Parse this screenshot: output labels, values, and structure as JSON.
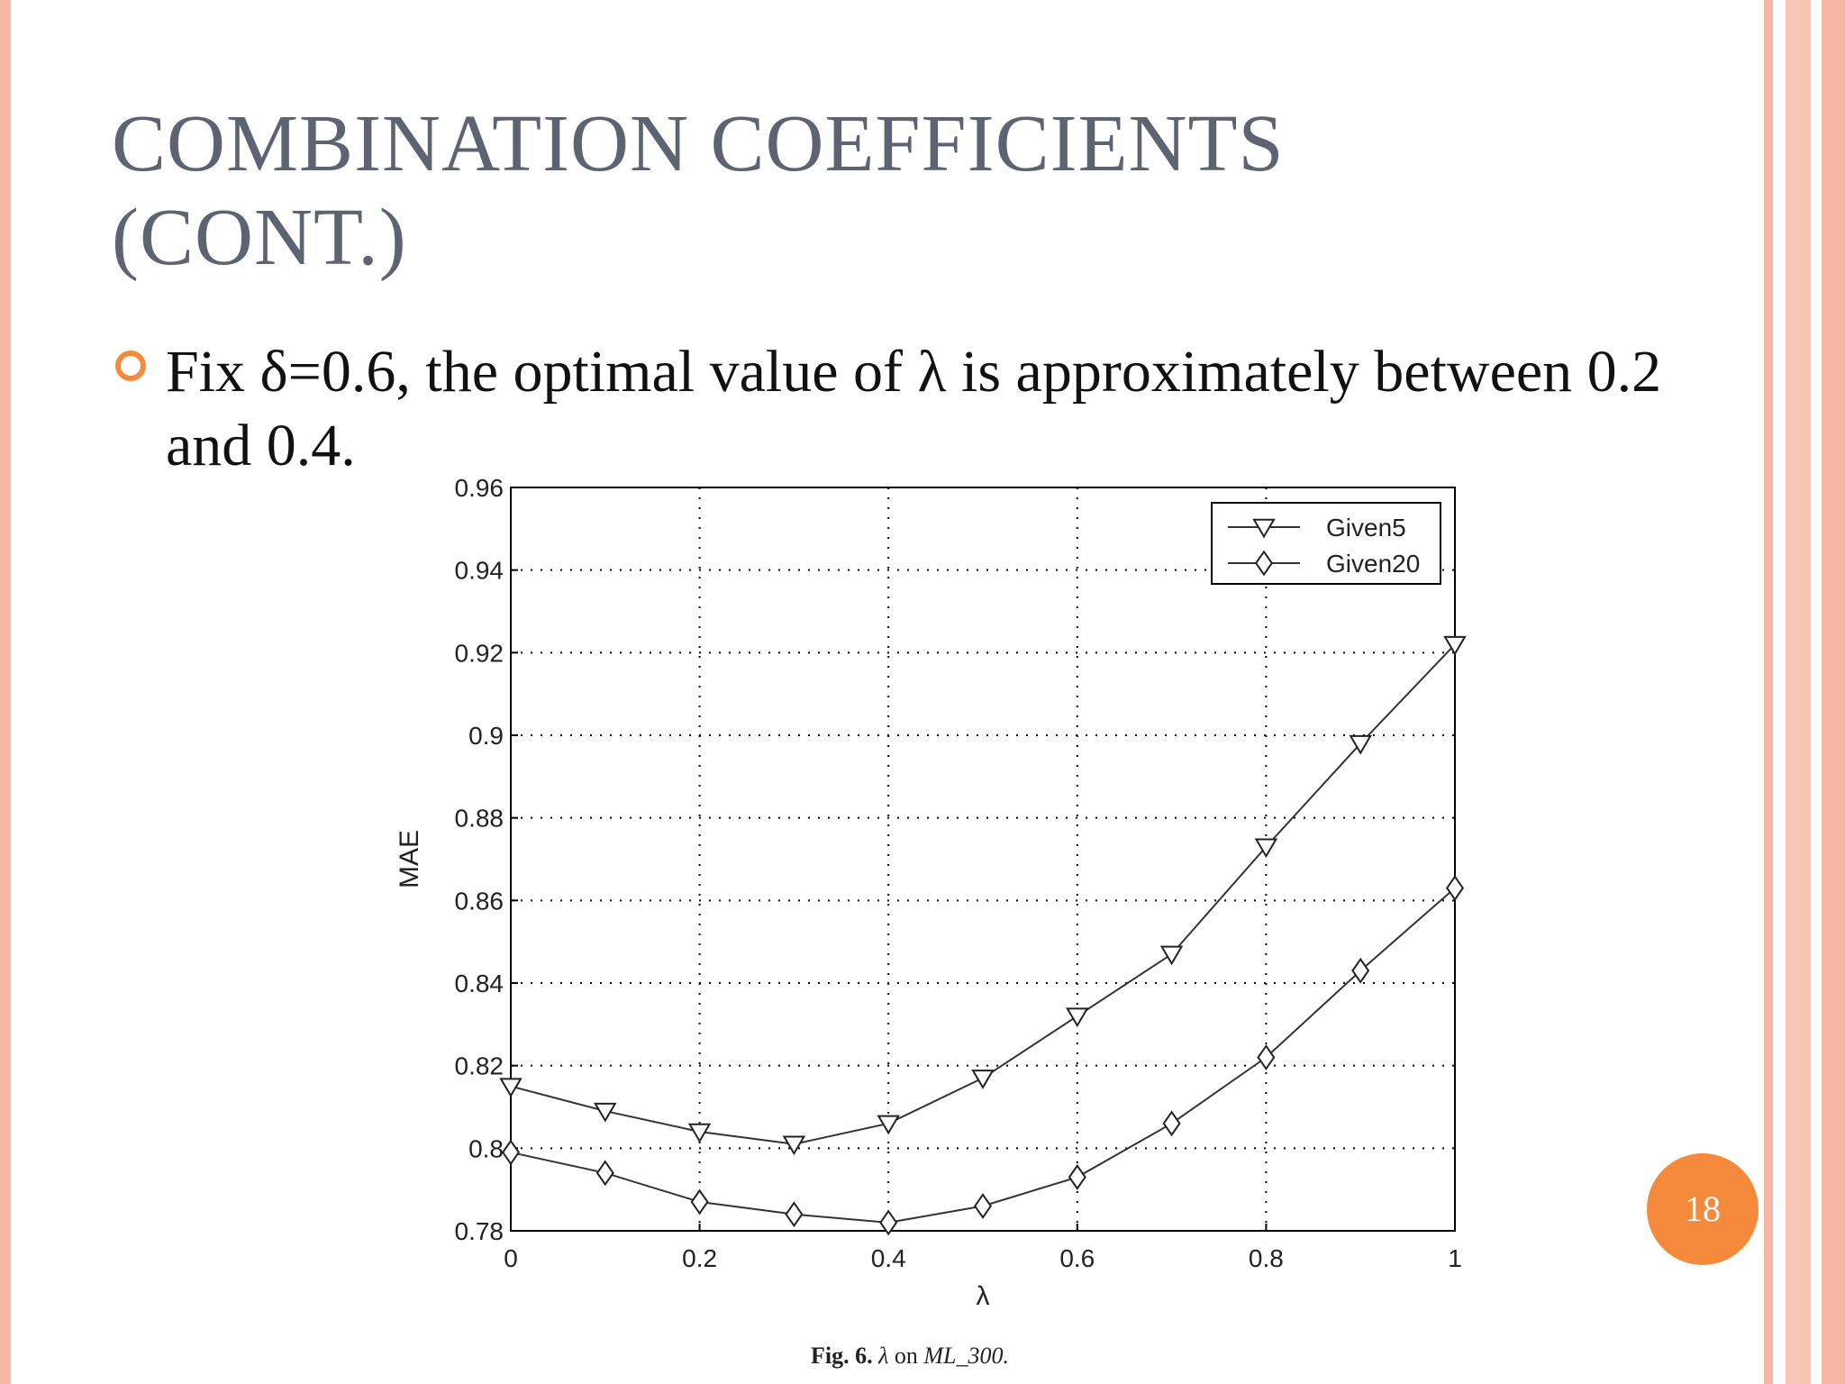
{
  "slide": {
    "title": "COMBINATION COEFFICIENTS (CONT.)",
    "bullet": "Fix δ=0.6, the optimal value of λ is approximately between 0.2 and 0.4.",
    "page_number": "18"
  },
  "caption": {
    "fig": "Fig. 6.",
    "lambda": "λ",
    "on": "on",
    "dataset": "ML_300."
  },
  "colors": {
    "accent": "#f58a3c",
    "border": "#f6b8a4",
    "title": "#5d6370"
  },
  "chart_data": {
    "type": "line",
    "xlabel": "λ",
    "ylabel": "MAE",
    "xlim": [
      0,
      1
    ],
    "ylim": [
      0.78,
      0.96
    ],
    "xticks": [
      0,
      0.2,
      0.4,
      0.6,
      0.8,
      1
    ],
    "xtick_labels": [
      "0",
      "0.2",
      "0.4",
      "0.6",
      "0.8",
      "1"
    ],
    "yticks": [
      0.78,
      0.8,
      0.82,
      0.84,
      0.86,
      0.88,
      0.9,
      0.92,
      0.94,
      0.96
    ],
    "ytick_labels": [
      "0.78",
      "0.8",
      "0.82",
      "0.84",
      "0.86",
      "0.88",
      "0.9",
      "0.92",
      "0.94",
      "0.96"
    ],
    "grid": true,
    "legend_position": "top-right",
    "x": [
      0,
      0.1,
      0.2,
      0.3,
      0.4,
      0.5,
      0.6,
      0.7,
      0.8,
      0.9,
      1.0
    ],
    "series": [
      {
        "name": "Given5",
        "marker": "triangle-down",
        "values": [
          0.815,
          0.809,
          0.804,
          0.801,
          0.806,
          0.817,
          0.832,
          0.847,
          0.873,
          0.898,
          0.922
        ]
      },
      {
        "name": "Given20",
        "marker": "diamond",
        "values": [
          0.799,
          0.794,
          0.787,
          0.784,
          0.782,
          0.786,
          0.793,
          0.806,
          0.822,
          0.843,
          0.863
        ]
      }
    ]
  }
}
